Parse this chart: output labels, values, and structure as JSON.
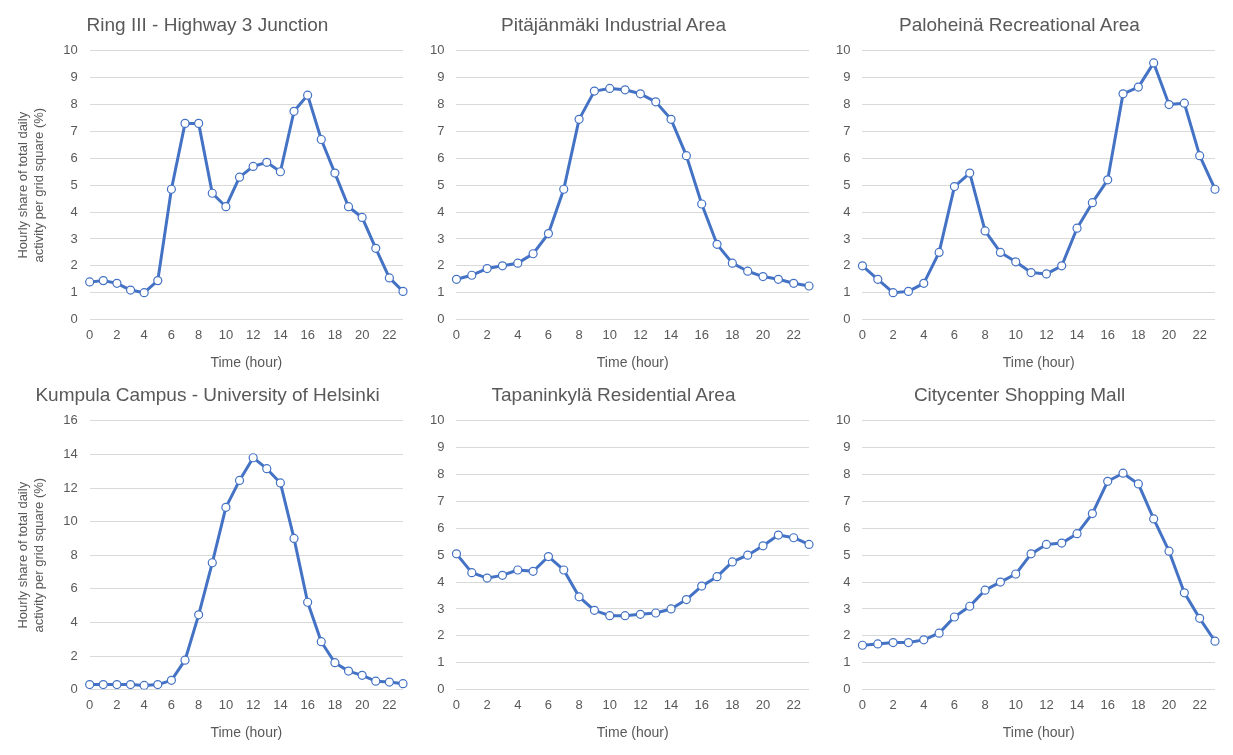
{
  "chart_data": [
    {
      "type": "line",
      "title": "Ring III - Highway 3 Junction",
      "xlabel": "Time (hour)",
      "ylabel": "Hourly share of total daily activity per grid square (%)",
      "categories": [
        "0",
        null,
        "2",
        null,
        "4",
        null,
        "6",
        null,
        "8",
        null,
        "10",
        null,
        "12",
        null,
        "14",
        null,
        "16",
        null,
        "18",
        null,
        "20",
        null,
        "22",
        null
      ],
      "ylim": [
        0,
        10
      ],
      "yticks": [
        0,
        1,
        2,
        3,
        4,
        5,
        6,
        7,
        8,
        9,
        10
      ],
      "grid": "y",
      "legend": false,
      "marker": "circle",
      "line_style": "solid",
      "series": [
        {
          "color": "#4472c4",
          "values": [
            1.4,
            1.45,
            1.35,
            1.1,
            1.0,
            1.45,
            4.85,
            7.3,
            7.3,
            4.7,
            4.2,
            5.3,
            5.7,
            5.85,
            5.5,
            7.75,
            8.35,
            6.7,
            5.45,
            4.2,
            3.8,
            2.65,
            1.55,
            1.05
          ]
        }
      ]
    },
    {
      "type": "line",
      "title": "Pitäjänmäki Industrial Area",
      "xlabel": "Time (hour)",
      "categories": [
        "0",
        null,
        "2",
        null,
        "4",
        null,
        "6",
        null,
        "8",
        null,
        "10",
        null,
        "12",
        null,
        "14",
        null,
        "16",
        null,
        "18",
        null,
        "20",
        null,
        "22",
        null
      ],
      "ylim": [
        0,
        10
      ],
      "yticks": [
        0,
        1,
        2,
        3,
        4,
        5,
        6,
        7,
        8,
        9,
        10
      ],
      "grid": "y",
      "legend": false,
      "marker": "circle",
      "line_style": "solid",
      "series": [
        {
          "color": "#4472c4",
          "values": [
            1.5,
            1.65,
            1.9,
            2.0,
            2.1,
            2.45,
            3.2,
            4.85,
            7.45,
            8.5,
            8.6,
            8.55,
            8.4,
            8.1,
            7.45,
            6.1,
            4.3,
            2.8,
            2.1,
            1.8,
            1.6,
            1.5,
            1.35,
            1.25
          ]
        }
      ]
    },
    {
      "type": "line",
      "title": "Paloheinä Recreational Area",
      "xlabel": "Time (hour)",
      "categories": [
        "0",
        null,
        "2",
        null,
        "4",
        null,
        "6",
        null,
        "8",
        null,
        "10",
        null,
        "12",
        null,
        "14",
        null,
        "16",
        null,
        "18",
        null,
        "20",
        null,
        "22",
        null
      ],
      "ylim": [
        0,
        10
      ],
      "yticks": [
        0,
        1,
        2,
        3,
        4,
        5,
        6,
        7,
        8,
        9,
        10
      ],
      "grid": "y",
      "legend": false,
      "marker": "circle",
      "line_style": "solid",
      "series": [
        {
          "color": "#4472c4",
          "values": [
            2.0,
            1.5,
            1.0,
            1.05,
            1.35,
            2.5,
            4.95,
            5.45,
            3.3,
            2.5,
            2.15,
            1.75,
            1.7,
            2.0,
            3.4,
            4.35,
            5.2,
            8.4,
            8.65,
            9.55,
            8.0,
            8.05,
            6.1,
            4.85
          ]
        }
      ]
    },
    {
      "type": "line",
      "title": "Kumpula Campus - University of Helsinki",
      "xlabel": "Time (hour)",
      "ylabel": "Hourly share of total daily activity per grid square (%)",
      "categories": [
        "0",
        null,
        "2",
        null,
        "4",
        null,
        "6",
        null,
        "8",
        null,
        "10",
        null,
        "12",
        null,
        "14",
        null,
        "16",
        null,
        "18",
        null,
        "20",
        null,
        "22",
        null
      ],
      "ylim": [
        0,
        16
      ],
      "yticks": [
        0,
        2,
        4,
        6,
        8,
        10,
        12,
        14,
        16
      ],
      "grid": "y",
      "legend": false,
      "marker": "circle",
      "line_style": "solid",
      "series": [
        {
          "color": "#4472c4",
          "values": [
            0.3,
            0.3,
            0.3,
            0.3,
            0.25,
            0.3,
            0.55,
            1.75,
            4.45,
            7.55,
            10.85,
            12.45,
            13.8,
            13.15,
            12.3,
            9.0,
            5.2,
            2.85,
            1.6,
            1.1,
            0.85,
            0.5,
            0.45,
            0.35
          ]
        }
      ]
    },
    {
      "type": "line",
      "title": "Tapaninkylä Residential Area",
      "xlabel": "Time (hour)",
      "categories": [
        "0",
        null,
        "2",
        null,
        "4",
        null,
        "6",
        null,
        "8",
        null,
        "10",
        null,
        "12",
        null,
        "14",
        null,
        "16",
        null,
        "18",
        null,
        "20",
        null,
        "22",
        null
      ],
      "ylim": [
        0,
        10
      ],
      "yticks": [
        0,
        1,
        2,
        3,
        4,
        5,
        6,
        7,
        8,
        9,
        10
      ],
      "grid": "y",
      "legend": false,
      "marker": "circle",
      "line_style": "solid",
      "series": [
        {
          "color": "#4472c4",
          "values": [
            5.05,
            4.35,
            4.15,
            4.25,
            4.45,
            4.4,
            4.95,
            4.45,
            3.45,
            2.95,
            2.75,
            2.75,
            2.8,
            2.85,
            3.0,
            3.35,
            3.85,
            4.2,
            4.75,
            5.0,
            5.35,
            5.75,
            5.65,
            5.4
          ]
        }
      ]
    },
    {
      "type": "line",
      "title": "Citycenter Shopping Mall",
      "xlabel": "Time (hour)",
      "categories": [
        "0",
        null,
        "2",
        null,
        "4",
        null,
        "6",
        null,
        "8",
        null,
        "10",
        null,
        "12",
        null,
        "14",
        null,
        "16",
        null,
        "18",
        null,
        "20",
        null,
        "22",
        null
      ],
      "ylim": [
        0,
        10
      ],
      "yticks": [
        0,
        1,
        2,
        3,
        4,
        5,
        6,
        7,
        8,
        9,
        10
      ],
      "grid": "y",
      "legend": false,
      "marker": "circle",
      "line_style": "solid",
      "series": [
        {
          "color": "#4472c4",
          "values": [
            1.65,
            1.7,
            1.75,
            1.75,
            1.85,
            2.1,
            2.7,
            3.1,
            3.7,
            4.0,
            4.3,
            5.05,
            5.4,
            5.45,
            5.8,
            6.55,
            7.75,
            8.05,
            7.65,
            6.35,
            5.15,
            3.6,
            2.65,
            1.8
          ]
        }
      ]
    }
  ]
}
